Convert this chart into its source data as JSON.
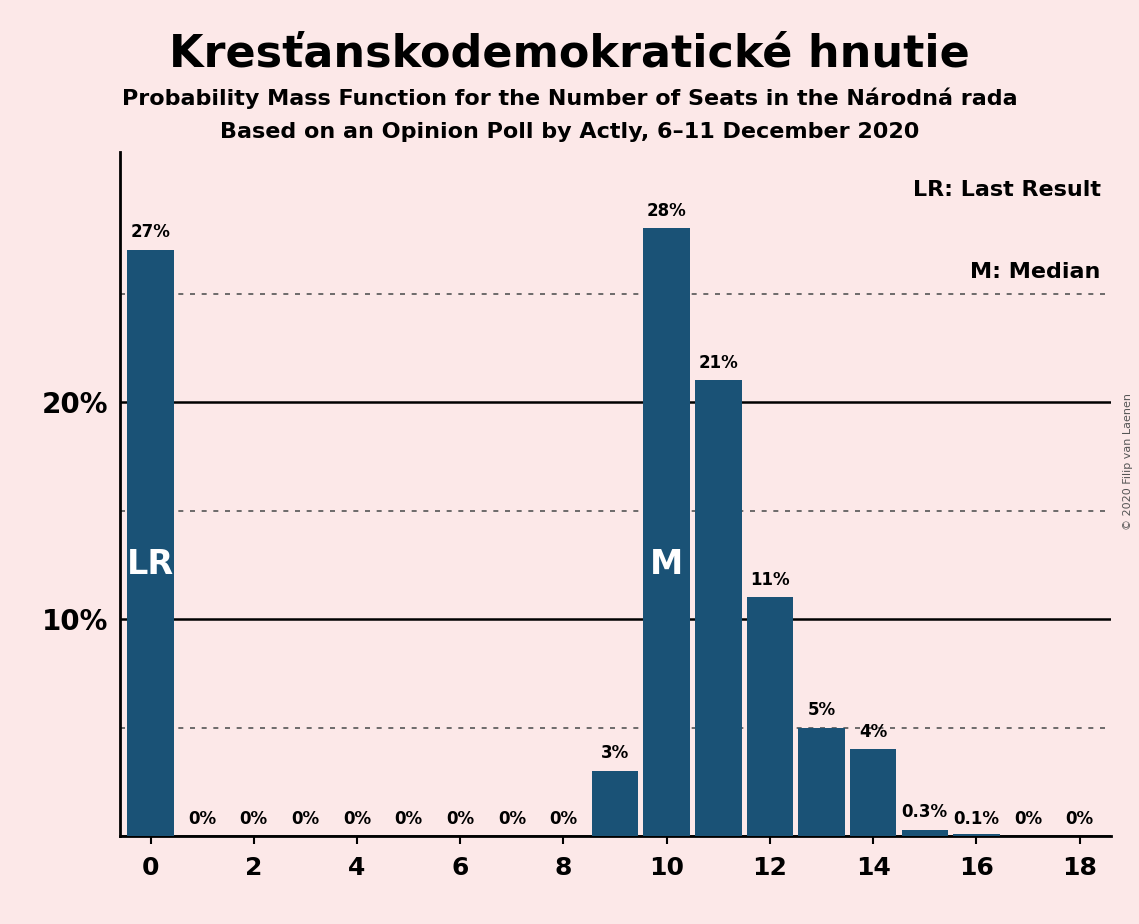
{
  "title": "Kresťanskodemokratické hnutie",
  "subtitle1": "Probability Mass Function for the Number of Seats in the Národná rada",
  "subtitle2": "Based on an Opinion Poll by Actly, 6–11 December 2020",
  "copyright": "© 2020 Filip van Laenen",
  "background_color": "#fce8e8",
  "bar_color": "#1a5276",
  "seats": [
    0,
    1,
    2,
    3,
    4,
    5,
    6,
    7,
    8,
    9,
    10,
    11,
    12,
    13,
    14,
    15,
    16,
    17,
    18
  ],
  "probabilities": [
    0.27,
    0.0,
    0.0,
    0.0,
    0.0,
    0.0,
    0.0,
    0.0,
    0.0,
    0.03,
    0.28,
    0.21,
    0.11,
    0.05,
    0.04,
    0.003,
    0.001,
    0.0,
    0.0
  ],
  "labels": [
    "27%",
    "0%",
    "0%",
    "0%",
    "0%",
    "0%",
    "0%",
    "0%",
    "0%",
    "3%",
    "28%",
    "21%",
    "11%",
    "5%",
    "4%",
    "0.3%",
    "0.1%",
    "0%",
    "0%"
  ],
  "last_result": 0,
  "median": 10,
  "yticks": [
    0.0,
    0.1,
    0.2
  ],
  "ytick_labels": [
    "",
    "10%",
    "20%"
  ],
  "ylim": [
    0,
    0.315
  ],
  "xlim": [
    -0.6,
    18.6
  ],
  "xticks": [
    0,
    2,
    4,
    6,
    8,
    10,
    12,
    14,
    16,
    18
  ],
  "legend_LR": "LR: Last Result",
  "legend_M": "M: Median",
  "solid_lines": [
    0.0,
    0.1,
    0.2
  ],
  "dotted_lines": [
    0.05,
    0.15,
    0.25
  ],
  "label_fontsize": 12,
  "ytick_fontsize": 20,
  "xtick_fontsize": 18,
  "title_fontsize": 32,
  "subtitle1_fontsize": 16,
  "subtitle2_fontsize": 16,
  "legend_fontsize": 16,
  "lr_m_fontsize": 24
}
